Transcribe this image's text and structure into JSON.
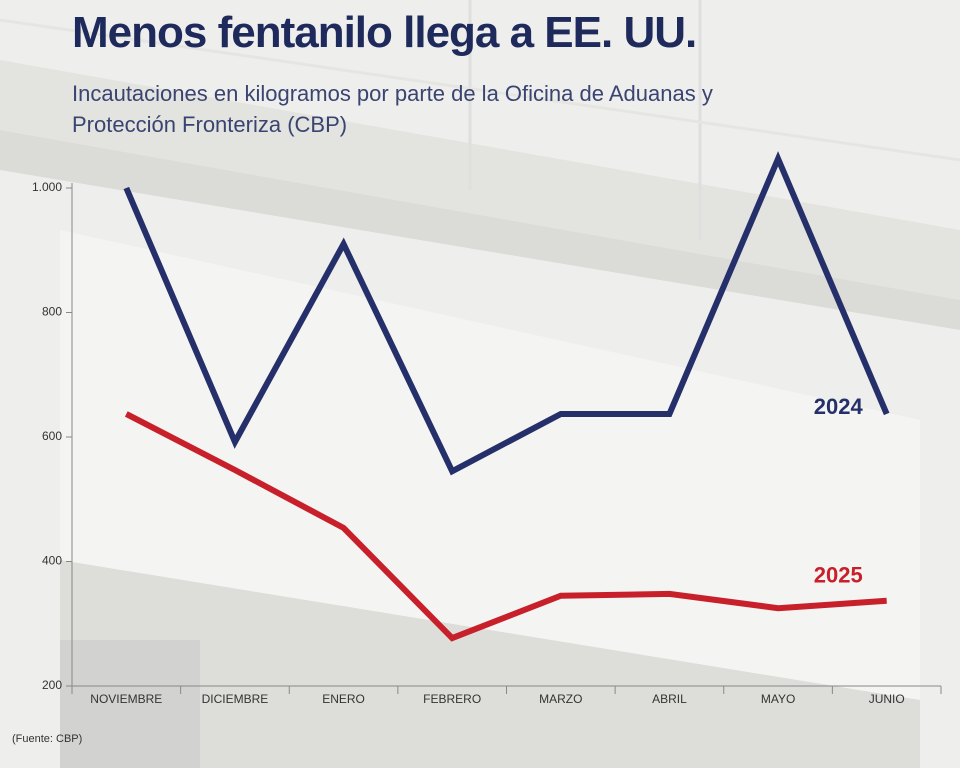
{
  "chart_data": {
    "type": "line",
    "title": "Menos fentanilo llega a EE. UU.",
    "subtitle": "Incautaciones en kilogramos por parte de la Oficina de Aduanas y Protección Fronteriza (CBP)",
    "source": "(Fuente: CBP)",
    "categories": [
      "NOVIEMBRE",
      "DICIEMBRE",
      "ENERO",
      "FEBRERO",
      "MARZO",
      "ABRIL",
      "MAYO",
      "JUNIO"
    ],
    "series": [
      {
        "name": "2024",
        "color": "#25306b",
        "values": [
          1000,
          592,
          910,
          545,
          637,
          637,
          1047,
          637
        ]
      },
      {
        "name": "2025",
        "color": "#c8202a",
        "values": [
          637,
          547,
          454,
          277,
          345,
          348,
          325,
          337
        ]
      }
    ],
    "ylim": [
      200,
      1000
    ],
    "yticks": [
      200,
      400,
      600,
      800,
      {
        "value": 1000,
        "label": "1.000"
      }
    ],
    "grid": false
  }
}
